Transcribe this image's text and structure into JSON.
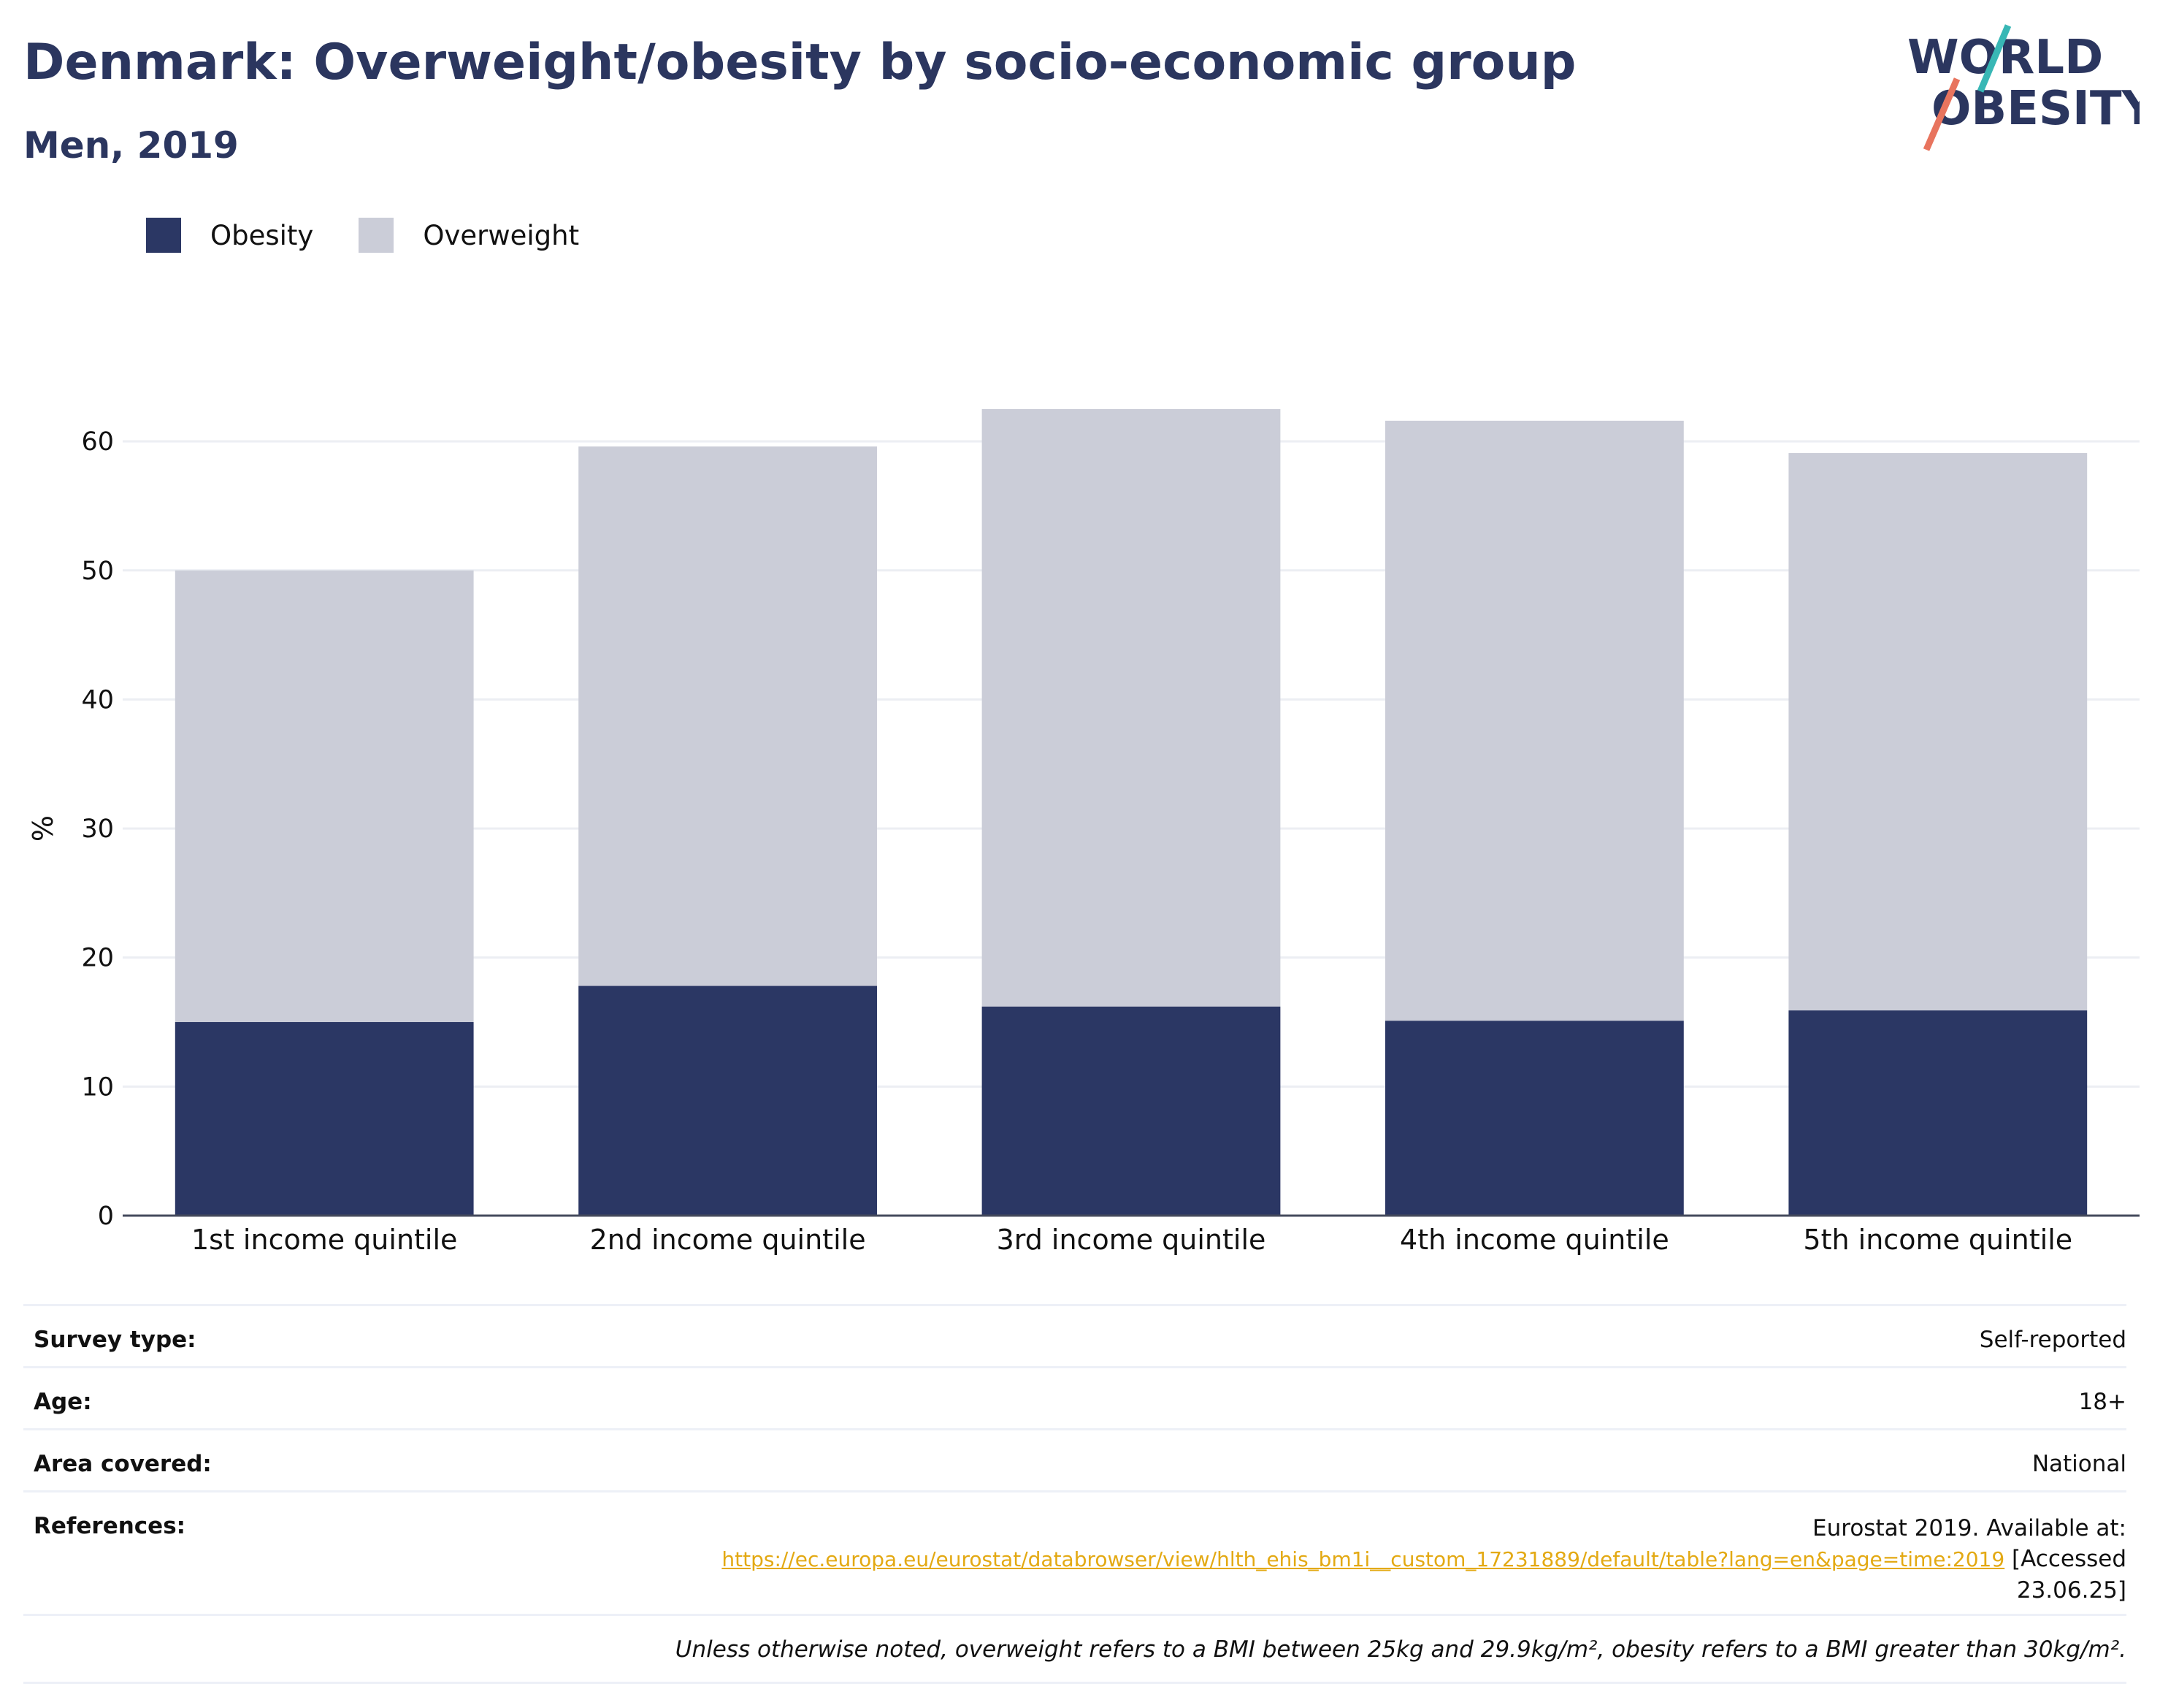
{
  "header": {
    "title": "Denmark: Overweight/obesity by socio-economic group",
    "subtitle": "Men, 2019",
    "logo_line1": "WORLD",
    "logo_line2": "OBESITY"
  },
  "legend": {
    "obesity_label": "Obesity",
    "overweight_label": "Overweight"
  },
  "colors": {
    "obesity": "#2b3764",
    "overweight": "#cbcdd8",
    "title": "#2b365f",
    "link": "#e3a913",
    "logo_teal": "#38b7b5",
    "logo_coral": "#e8745e"
  },
  "chart_data": {
    "type": "bar",
    "stacked": true,
    "categories": [
      "1st income quintile",
      "2nd income quintile",
      "3rd income quintile",
      "4th income quintile",
      "5th income quintile"
    ],
    "series": [
      {
        "name": "Obesity",
        "values": [
          15.0,
          17.8,
          16.2,
          15.1,
          15.9
        ]
      },
      {
        "name": "Overweight",
        "values": [
          35.0,
          41.8,
          46.3,
          46.5,
          43.2
        ]
      }
    ],
    "totals": [
      50.0,
      59.6,
      62.5,
      61.6,
      59.1
    ],
    "ylabel": "%",
    "ylim": [
      0,
      62.5
    ],
    "yticks": [
      0,
      10,
      20,
      30,
      40,
      50,
      60
    ],
    "grid": true,
    "legend_position": "top-left"
  },
  "info": {
    "survey_type_label": "Survey type:",
    "survey_type_value": "Self-reported",
    "age_label": "Age:",
    "age_value": "18+",
    "area_label": "Area covered:",
    "area_value": "National",
    "references_label": "References:",
    "references_text": "Eurostat 2019. Available at:",
    "references_link": "https://ec.europa.eu/eurostat/databrowser/view/hlth_ehis_bm1i__custom_17231889/default/table?lang=en&page=time:2019",
    "references_accessed_1": "[Accessed",
    "references_accessed_2": "23.06.25]",
    "note": "Unless otherwise noted, overweight refers to a BMI between 25kg and 29.9kg/m², obesity refers to a BMI greater than 30kg/m²."
  }
}
